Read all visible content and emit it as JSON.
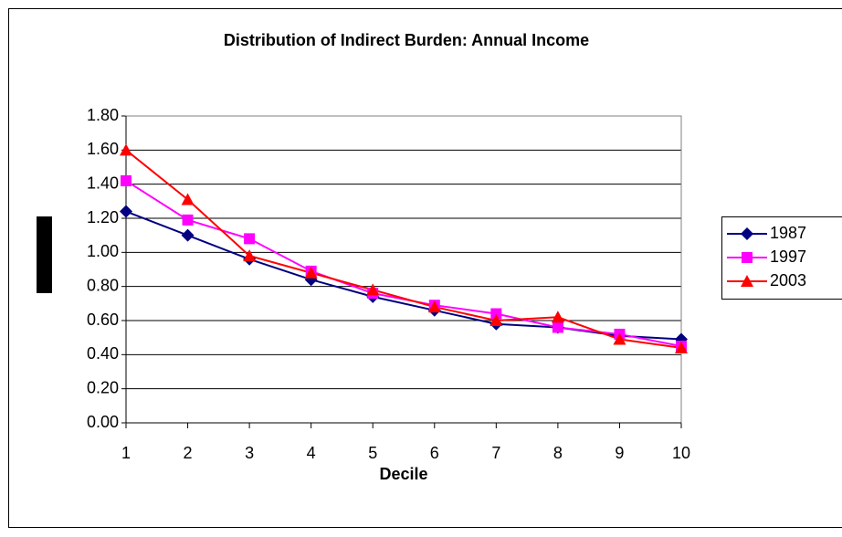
{
  "chart_data": {
    "type": "line",
    "title": "Distribution of Indirect Burden: Annual Income",
    "x_label": "Decile",
    "x": [
      1,
      2,
      3,
      4,
      5,
      6,
      7,
      8,
      9,
      10
    ],
    "xlim": [
      1,
      10
    ],
    "xticks": [
      1,
      2,
      3,
      4,
      5,
      6,
      7,
      8,
      9,
      10
    ],
    "ylim": [
      0,
      1.8
    ],
    "yticks": [
      {
        "value": 0,
        "label": "0.00"
      },
      {
        "value": 0.2,
        "label": "0.20"
      },
      {
        "value": 0.4,
        "label": "0.40"
      },
      {
        "value": 0.6,
        "label": "0.60"
      },
      {
        "value": 0.8,
        "label": "0.80"
      },
      {
        "value": 1.0,
        "label": "1.00"
      },
      {
        "value": 1.2,
        "label": "1.20"
      },
      {
        "value": 1.4,
        "label": "1.40"
      },
      {
        "value": 1.6,
        "label": "1.60"
      },
      {
        "value": 1.8,
        "label": "1.80"
      }
    ],
    "grid": true,
    "legend": "right",
    "series": [
      {
        "name": "1987",
        "color": "#000080",
        "marker": "diamond",
        "values": [
          1.24,
          1.1,
          0.96,
          0.84,
          0.74,
          0.66,
          0.58,
          0.56,
          0.51,
          0.49
        ]
      },
      {
        "name": "1997",
        "color": "#ff00ff",
        "marker": "square",
        "values": [
          1.42,
          1.19,
          1.08,
          0.89,
          0.76,
          0.69,
          0.64,
          0.56,
          0.52,
          0.45
        ]
      },
      {
        "name": "2003",
        "color": "#ff0000",
        "marker": "triangle",
        "values": [
          1.6,
          1.31,
          0.98,
          0.88,
          0.78,
          0.68,
          0.6,
          0.62,
          0.49,
          0.44
        ]
      }
    ]
  }
}
